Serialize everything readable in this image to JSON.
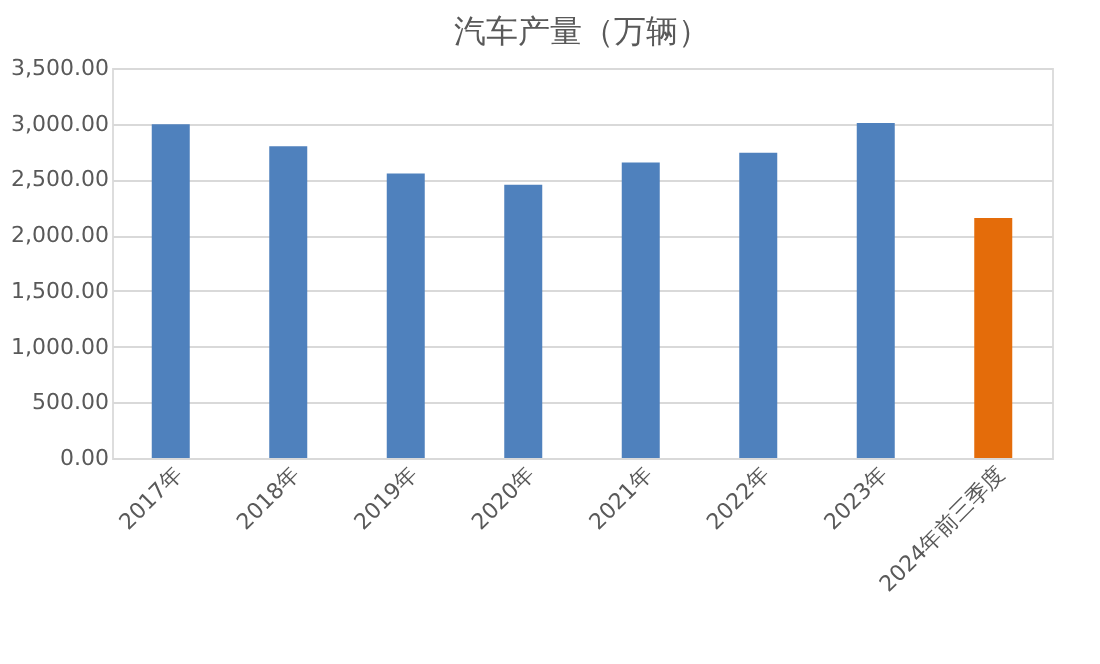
{
  "chart_data": {
    "type": "bar",
    "title": "汽车产量（万辆）",
    "categories": [
      "2017年",
      "2018年",
      "2019年",
      "2020年",
      "2021年",
      "2022年",
      "2023年",
      "2024年前三季度"
    ],
    "values": [
      2995,
      2797,
      2553,
      2453,
      2653,
      2740,
      3007,
      2154
    ],
    "colors": [
      "#4f81bd",
      "#4f81bd",
      "#4f81bd",
      "#4f81bd",
      "#4f81bd",
      "#4f81bd",
      "#4f81bd",
      "#e46c0a"
    ],
    "ylim": [
      0,
      3500
    ],
    "yticks": [
      {
        "value": 0,
        "label": "0.00"
      },
      {
        "value": 500,
        "label": "500.00"
      },
      {
        "value": 1000,
        "label": "1,000.00"
      },
      {
        "value": 1500,
        "label": "1,500.00"
      },
      {
        "value": 2000,
        "label": "2,000.00"
      },
      {
        "value": 2500,
        "label": "2,500.00"
      },
      {
        "value": 3000,
        "label": "3,000.00"
      },
      {
        "value": 3500,
        "label": "3,500.00"
      }
    ],
    "grid": "y"
  }
}
